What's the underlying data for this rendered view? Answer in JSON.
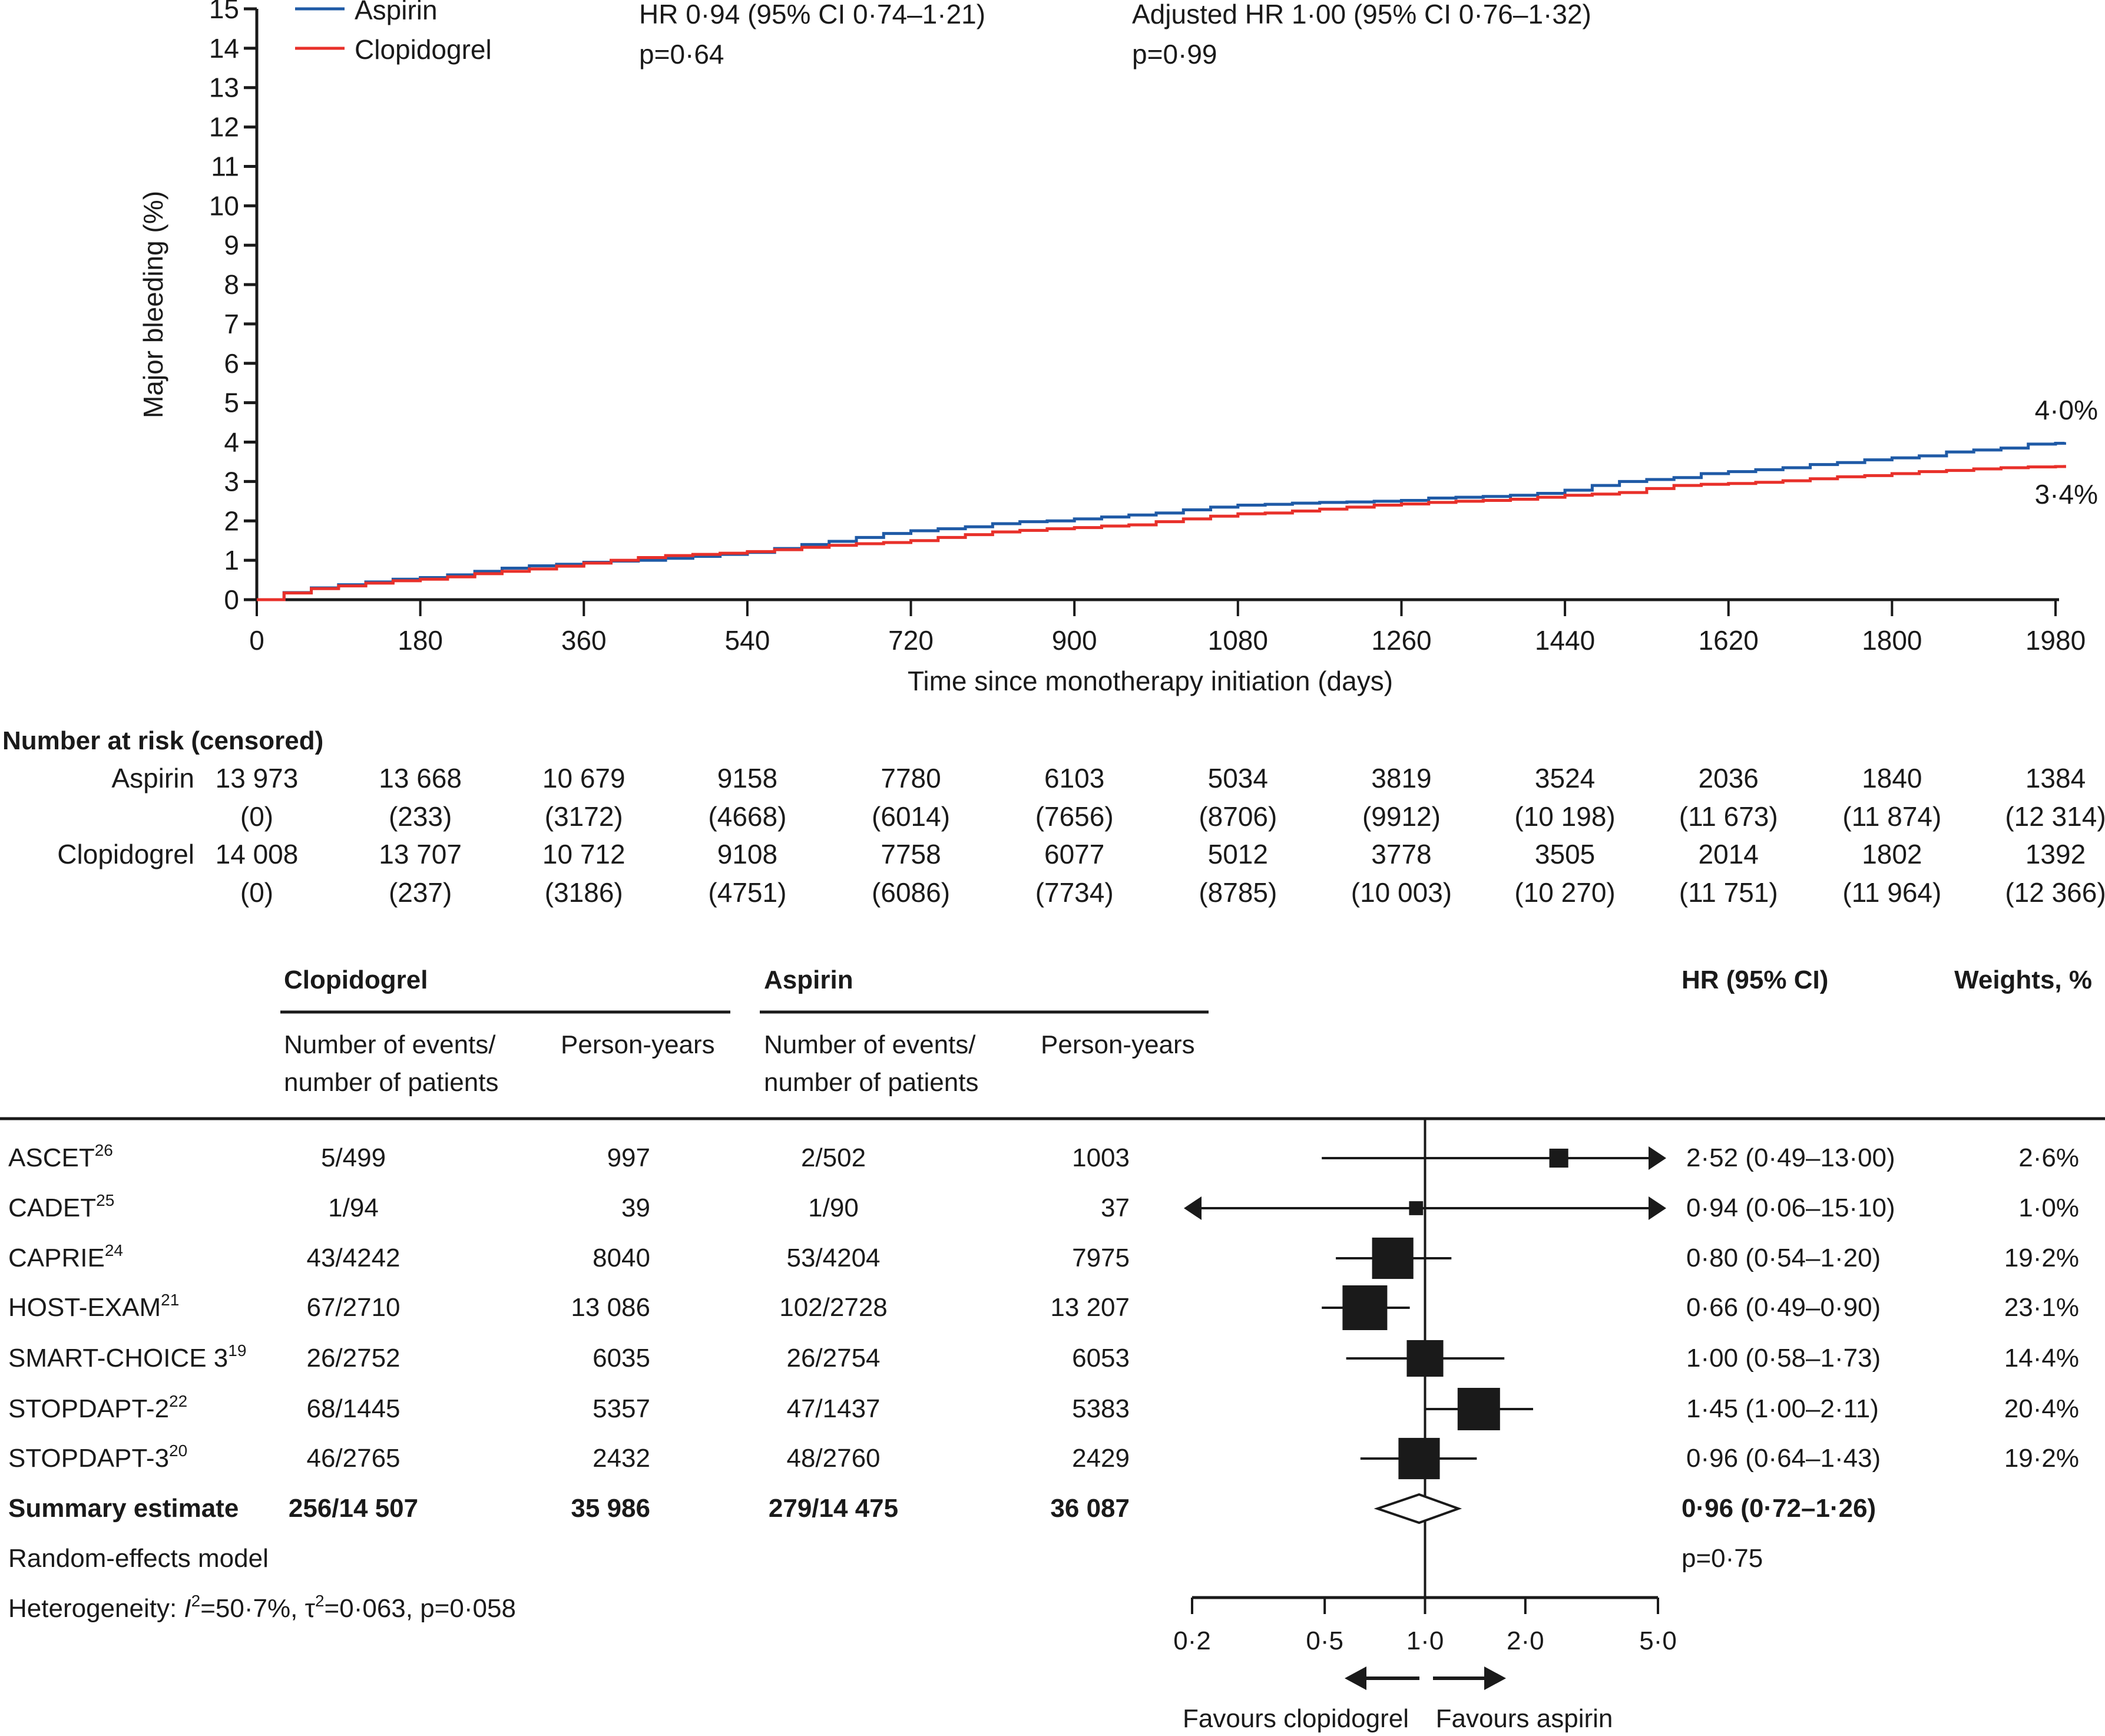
{
  "chart_data": [
    {
      "type": "line",
      "subtype": "kaplan-meier-cumulative-incidence",
      "title": "",
      "xlabel": "Time since monotherapy initiation (days)",
      "ylabel": "Major bleeding (%)",
      "xlim": [
        0,
        1980
      ],
      "ylim": [
        0,
        15
      ],
      "x_ticks": [
        0,
        180,
        360,
        540,
        720,
        900,
        1080,
        1260,
        1440,
        1620,
        1800,
        1980
      ],
      "y_ticks": [
        0,
        1,
        2,
        3,
        4,
        5,
        6,
        7,
        8,
        9,
        10,
        11,
        12,
        13,
        14,
        15
      ],
      "grid": false,
      "legend_position": "top-left",
      "legend": [
        {
          "name": "Aspirin",
          "color": "#1f5aa6"
        },
        {
          "name": "Clopidogrel",
          "color": "#e8302a"
        }
      ],
      "annotations": [
        {
          "line1": "HR 0·94 (95% CI 0·74–1·21)",
          "line2": "p=0·64"
        },
        {
          "line1": "Adjusted HR 1·00 (95% CI 0·76–1·32)",
          "line2": "p=0·99"
        }
      ],
      "end_labels": [
        {
          "series": "Aspirin",
          "text": "4·0%"
        },
        {
          "series": "Clopidogrel",
          "text": "3·4%"
        }
      ],
      "series": [
        {
          "name": "Aspirin",
          "color": "#1f5aa6",
          "points": [
            [
              0,
              0
            ],
            [
              30,
              0.18
            ],
            [
              60,
              0.3
            ],
            [
              90,
              0.38
            ],
            [
              120,
              0.45
            ],
            [
              150,
              0.52
            ],
            [
              180,
              0.56
            ],
            [
              210,
              0.63
            ],
            [
              240,
              0.72
            ],
            [
              270,
              0.8
            ],
            [
              300,
              0.86
            ],
            [
              330,
              0.9
            ],
            [
              360,
              0.95
            ],
            [
              390,
              0.98
            ],
            [
              420,
              1.0
            ],
            [
              450,
              1.05
            ],
            [
              480,
              1.1
            ],
            [
              510,
              1.15
            ],
            [
              540,
              1.2
            ],
            [
              570,
              1.3
            ],
            [
              600,
              1.4
            ],
            [
              630,
              1.48
            ],
            [
              660,
              1.58
            ],
            [
              690,
              1.68
            ],
            [
              720,
              1.75
            ],
            [
              750,
              1.8
            ],
            [
              780,
              1.85
            ],
            [
              810,
              1.93
            ],
            [
              840,
              1.98
            ],
            [
              870,
              2.0
            ],
            [
              900,
              2.05
            ],
            [
              930,
              2.1
            ],
            [
              960,
              2.15
            ],
            [
              990,
              2.2
            ],
            [
              1020,
              2.28
            ],
            [
              1050,
              2.35
            ],
            [
              1080,
              2.4
            ],
            [
              1110,
              2.42
            ],
            [
              1140,
              2.45
            ],
            [
              1170,
              2.47
            ],
            [
              1200,
              2.48
            ],
            [
              1230,
              2.5
            ],
            [
              1260,
              2.52
            ],
            [
              1290,
              2.58
            ],
            [
              1320,
              2.6
            ],
            [
              1350,
              2.62
            ],
            [
              1380,
              2.65
            ],
            [
              1410,
              2.7
            ],
            [
              1440,
              2.78
            ],
            [
              1470,
              2.9
            ],
            [
              1500,
              3.0
            ],
            [
              1530,
              3.05
            ],
            [
              1560,
              3.1
            ],
            [
              1590,
              3.2
            ],
            [
              1620,
              3.25
            ],
            [
              1650,
              3.3
            ],
            [
              1680,
              3.35
            ],
            [
              1710,
              3.43
            ],
            [
              1740,
              3.48
            ],
            [
              1770,
              3.55
            ],
            [
              1800,
              3.6
            ],
            [
              1830,
              3.65
            ],
            [
              1860,
              3.75
            ],
            [
              1890,
              3.8
            ],
            [
              1920,
              3.85
            ],
            [
              1950,
              3.95
            ],
            [
              1980,
              3.97
            ],
            [
              1990,
              4.0
            ]
          ]
        },
        {
          "name": "Clopidogrel",
          "color": "#e8302a",
          "points": [
            [
              0,
              0
            ],
            [
              30,
              0.17
            ],
            [
              60,
              0.28
            ],
            [
              90,
              0.35
            ],
            [
              120,
              0.42
            ],
            [
              150,
              0.48
            ],
            [
              180,
              0.52
            ],
            [
              210,
              0.58
            ],
            [
              240,
              0.66
            ],
            [
              270,
              0.72
            ],
            [
              300,
              0.78
            ],
            [
              330,
              0.85
            ],
            [
              360,
              0.93
            ],
            [
              390,
              1.0
            ],
            [
              420,
              1.07
            ],
            [
              450,
              1.12
            ],
            [
              480,
              1.15
            ],
            [
              510,
              1.18
            ],
            [
              540,
              1.22
            ],
            [
              570,
              1.27
            ],
            [
              600,
              1.33
            ],
            [
              630,
              1.38
            ],
            [
              660,
              1.42
            ],
            [
              690,
              1.45
            ],
            [
              720,
              1.5
            ],
            [
              750,
              1.58
            ],
            [
              780,
              1.65
            ],
            [
              810,
              1.72
            ],
            [
              840,
              1.76
            ],
            [
              870,
              1.8
            ],
            [
              900,
              1.83
            ],
            [
              930,
              1.87
            ],
            [
              960,
              1.9
            ],
            [
              990,
              1.98
            ],
            [
              1020,
              2.05
            ],
            [
              1050,
              2.12
            ],
            [
              1080,
              2.18
            ],
            [
              1110,
              2.2
            ],
            [
              1140,
              2.25
            ],
            [
              1170,
              2.3
            ],
            [
              1200,
              2.35
            ],
            [
              1230,
              2.4
            ],
            [
              1260,
              2.43
            ],
            [
              1290,
              2.47
            ],
            [
              1320,
              2.5
            ],
            [
              1350,
              2.52
            ],
            [
              1380,
              2.55
            ],
            [
              1410,
              2.6
            ],
            [
              1440,
              2.65
            ],
            [
              1470,
              2.68
            ],
            [
              1500,
              2.72
            ],
            [
              1530,
              2.82
            ],
            [
              1560,
              2.9
            ],
            [
              1590,
              2.93
            ],
            [
              1620,
              2.95
            ],
            [
              1650,
              2.98
            ],
            [
              1680,
              3.02
            ],
            [
              1710,
              3.07
            ],
            [
              1740,
              3.12
            ],
            [
              1770,
              3.15
            ],
            [
              1800,
              3.2
            ],
            [
              1830,
              3.25
            ],
            [
              1860,
              3.28
            ],
            [
              1890,
              3.32
            ],
            [
              1920,
              3.35
            ],
            [
              1950,
              3.37
            ],
            [
              1980,
              3.38
            ],
            [
              1990,
              3.42
            ]
          ]
        }
      ]
    },
    {
      "type": "forest",
      "title": "",
      "xlabel": "",
      "x_scale": "log",
      "xlim": [
        0.2,
        5.0
      ],
      "x_ticks": [
        "0·2",
        "0·5",
        "1·0",
        "2·0",
        "5·0"
      ],
      "x_tick_values": [
        0.2,
        0.5,
        1.0,
        2.0,
        5.0
      ],
      "reference_line": 1.0,
      "favours_left": "Favours clopidogrel",
      "favours_right": "Favours aspirin",
      "studies": [
        {
          "name": "ASCET",
          "ref": "26",
          "hr": 2.52,
          "lo": 0.49,
          "hi": 13.0,
          "weight": 2.6
        },
        {
          "name": "CADET",
          "ref": "25",
          "hr": 0.94,
          "lo": 0.06,
          "hi": 15.1,
          "weight": 1.0
        },
        {
          "name": "CAPRIE",
          "ref": "24",
          "hr": 0.8,
          "lo": 0.54,
          "hi": 1.2,
          "weight": 19.2
        },
        {
          "name": "HOST-EXAM",
          "ref": "21",
          "hr": 0.66,
          "lo": 0.49,
          "hi": 0.9,
          "weight": 23.1
        },
        {
          "name": "SMART-CHOICE 3",
          "ref": "19",
          "hr": 1.0,
          "lo": 0.58,
          "hi": 1.73,
          "weight": 14.4
        },
        {
          "name": "STOPDAPT-2",
          "ref": "22",
          "hr": 1.45,
          "lo": 1.0,
          "hi": 2.11,
          "weight": 20.4
        },
        {
          "name": "STOPDAPT-3",
          "ref": "20",
          "hr": 0.96,
          "lo": 0.64,
          "hi": 1.43,
          "weight": 19.2
        }
      ],
      "summary": {
        "hr": 0.96,
        "lo": 0.72,
        "hi": 1.26,
        "p": "p=0·75"
      }
    }
  ],
  "km": {
    "legend": {
      "aspirin": "Aspirin",
      "clopidogrel": "Clopidogrel"
    },
    "hr_text": "HR 0·94 (95% CI 0·74–1·21)",
    "hr_p": "p=0·64",
    "adj_text": "Adjusted HR 1·00 (95% CI 0·76–1·32)",
    "adj_p": "p=0·99",
    "ylabel": "Major bleeding (%)",
    "xlabel": "Time since monotherapy initiation (days)",
    "end_aspirin": "4·0%",
    "end_clopidogrel": "3·4%"
  },
  "risk": {
    "title": "Number at risk (censored)",
    "rows": [
      {
        "label": "Aspirin",
        "at_risk": [
          "13 973",
          "13 668",
          "10 679",
          "9158",
          "7780",
          "6103",
          "5034",
          "3819",
          "3524",
          "2036",
          "1840",
          "1384"
        ],
        "censored": [
          "(0)",
          "(233)",
          "(3172)",
          "(4668)",
          "(6014)",
          "(7656)",
          "(8706)",
          "(9912)",
          "(10 198)",
          "(11 673)",
          "(11 874)",
          "(12 314)"
        ]
      },
      {
        "label": "Clopidogrel",
        "at_risk": [
          "14 008",
          "13 707",
          "10 712",
          "9108",
          "7758",
          "6077",
          "5012",
          "3778",
          "3505",
          "2014",
          "1802",
          "1392"
        ],
        "censored": [
          "(0)",
          "(237)",
          "(3186)",
          "(4751)",
          "(6086)",
          "(7734)",
          "(8785)",
          "(10 003)",
          "(10 270)",
          "(11 751)",
          "(11 964)",
          "(12 366)"
        ]
      }
    ]
  },
  "forest_table": {
    "group_clopidogrel": "Clopidogrel",
    "group_aspirin": "Aspirin",
    "col_events": [
      "Number of events/",
      "number of patients"
    ],
    "col_py": "Person-years",
    "col_hr": "HR (95% CI)",
    "col_weight": "Weights, %",
    "rows": [
      {
        "name": "ASCET",
        "ref": "26",
        "clo_ev": "5/499",
        "clo_py": "997",
        "asp_ev": "2/502",
        "asp_py": "1003",
        "hr": "2·52 (0·49–13·00)",
        "w": "2·6%"
      },
      {
        "name": "CADET",
        "ref": "25",
        "clo_ev": "1/94",
        "clo_py": "39",
        "asp_ev": "1/90",
        "asp_py": "37",
        "hr": "0·94 (0·06–15·10)",
        "w": "1·0%"
      },
      {
        "name": "CAPRIE",
        "ref": "24",
        "clo_ev": "43/4242",
        "clo_py": "8040",
        "asp_ev": "53/4204",
        "asp_py": "7975",
        "hr": "0·80 (0·54–1·20)",
        "w": "19·2%"
      },
      {
        "name": "HOST-EXAM",
        "ref": "21",
        "clo_ev": "67/2710",
        "clo_py": "13 086",
        "asp_ev": "102/2728",
        "asp_py": "13 207",
        "hr": "0·66 (0·49–0·90)",
        "w": "23·1%"
      },
      {
        "name": "SMART-CHOICE 3",
        "ref": "19",
        "clo_ev": "26/2752",
        "clo_py": "6035",
        "asp_ev": "26/2754",
        "asp_py": "6053",
        "hr": "1·00 (0·58–1·73)",
        "w": "14·4%"
      },
      {
        "name": "STOPDAPT-2",
        "ref": "22",
        "clo_ev": "68/1445",
        "clo_py": "5357",
        "asp_ev": "47/1437",
        "asp_py": "5383",
        "hr": "1·45 (1·00–2·11)",
        "w": "20·4%"
      },
      {
        "name": "STOPDAPT-3",
        "ref": "20",
        "clo_ev": "46/2765",
        "clo_py": "2432",
        "asp_ev": "48/2760",
        "asp_py": "2429",
        "hr": "0·96 (0·64–1·43)",
        "w": "19·2%"
      }
    ],
    "summary": {
      "name": "Summary estimate",
      "clo_ev": "256/14 507",
      "clo_py": "35 986",
      "asp_ev": "279/14 475",
      "asp_py": "36 087",
      "hr": "0·96 (0·72–1·26)",
      "p": "p=0·75"
    },
    "model": "Random-effects model",
    "heterogeneity": {
      "prefix": "Heterogeneity: ",
      "i2_label": "I",
      "i2_value": "=50·7%, ",
      "tau_label": "τ",
      "tau_value": "=0·063, p=0·058"
    },
    "favours_left": "Favours clopidogrel",
    "favours_right": "Favours aspirin"
  }
}
